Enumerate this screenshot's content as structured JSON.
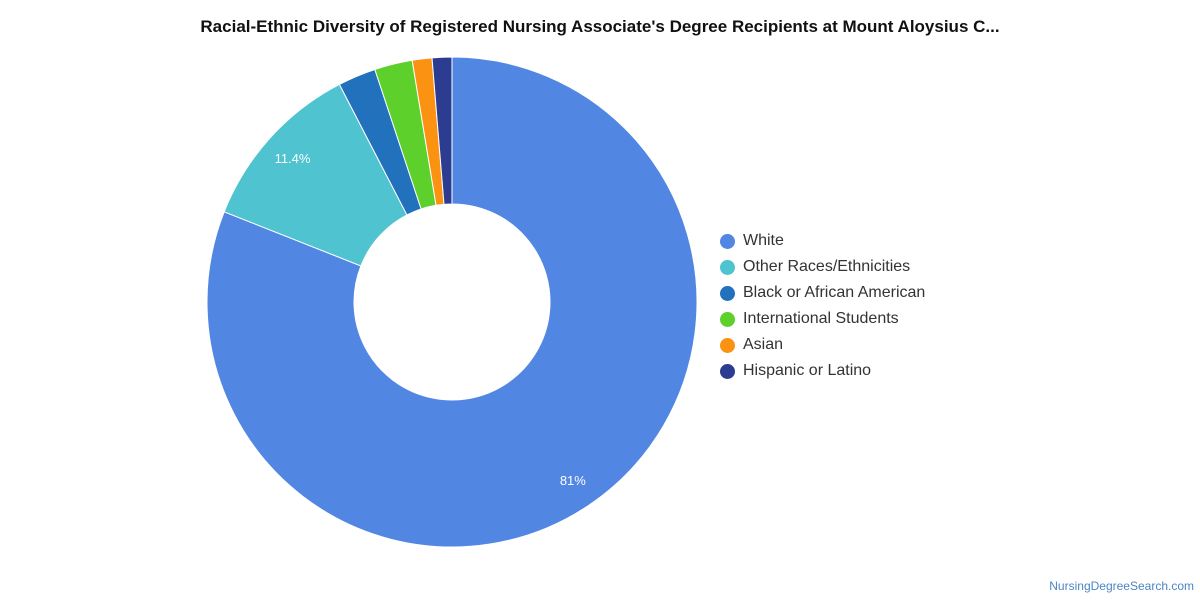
{
  "chart_data": {
    "type": "pie",
    "title": "Racial-Ethnic Diversity of Registered Nursing Associate's Degree Recipients at Mount Aloysius C...",
    "donut": true,
    "legend_position": "right",
    "series": [
      {
        "name": "White",
        "value": 81.0,
        "label": "81%",
        "color": "#5286e3"
      },
      {
        "name": "Other Races/Ethnicities",
        "value": 11.4,
        "label": "11.4%",
        "color": "#4fc3cf"
      },
      {
        "name": "Black or African American",
        "value": 2.5,
        "label": "",
        "color": "#2271bd"
      },
      {
        "name": "International Students",
        "value": 2.5,
        "label": "",
        "color": "#5ed02c"
      },
      {
        "name": "Asian",
        "value": 1.3,
        "label": "",
        "color": "#fb9211"
      },
      {
        "name": "Hispanic or Latino",
        "value": 1.3,
        "label": "",
        "color": "#2c3d91"
      }
    ]
  },
  "footer": {
    "source": "NursingDegreeSearch.com"
  }
}
